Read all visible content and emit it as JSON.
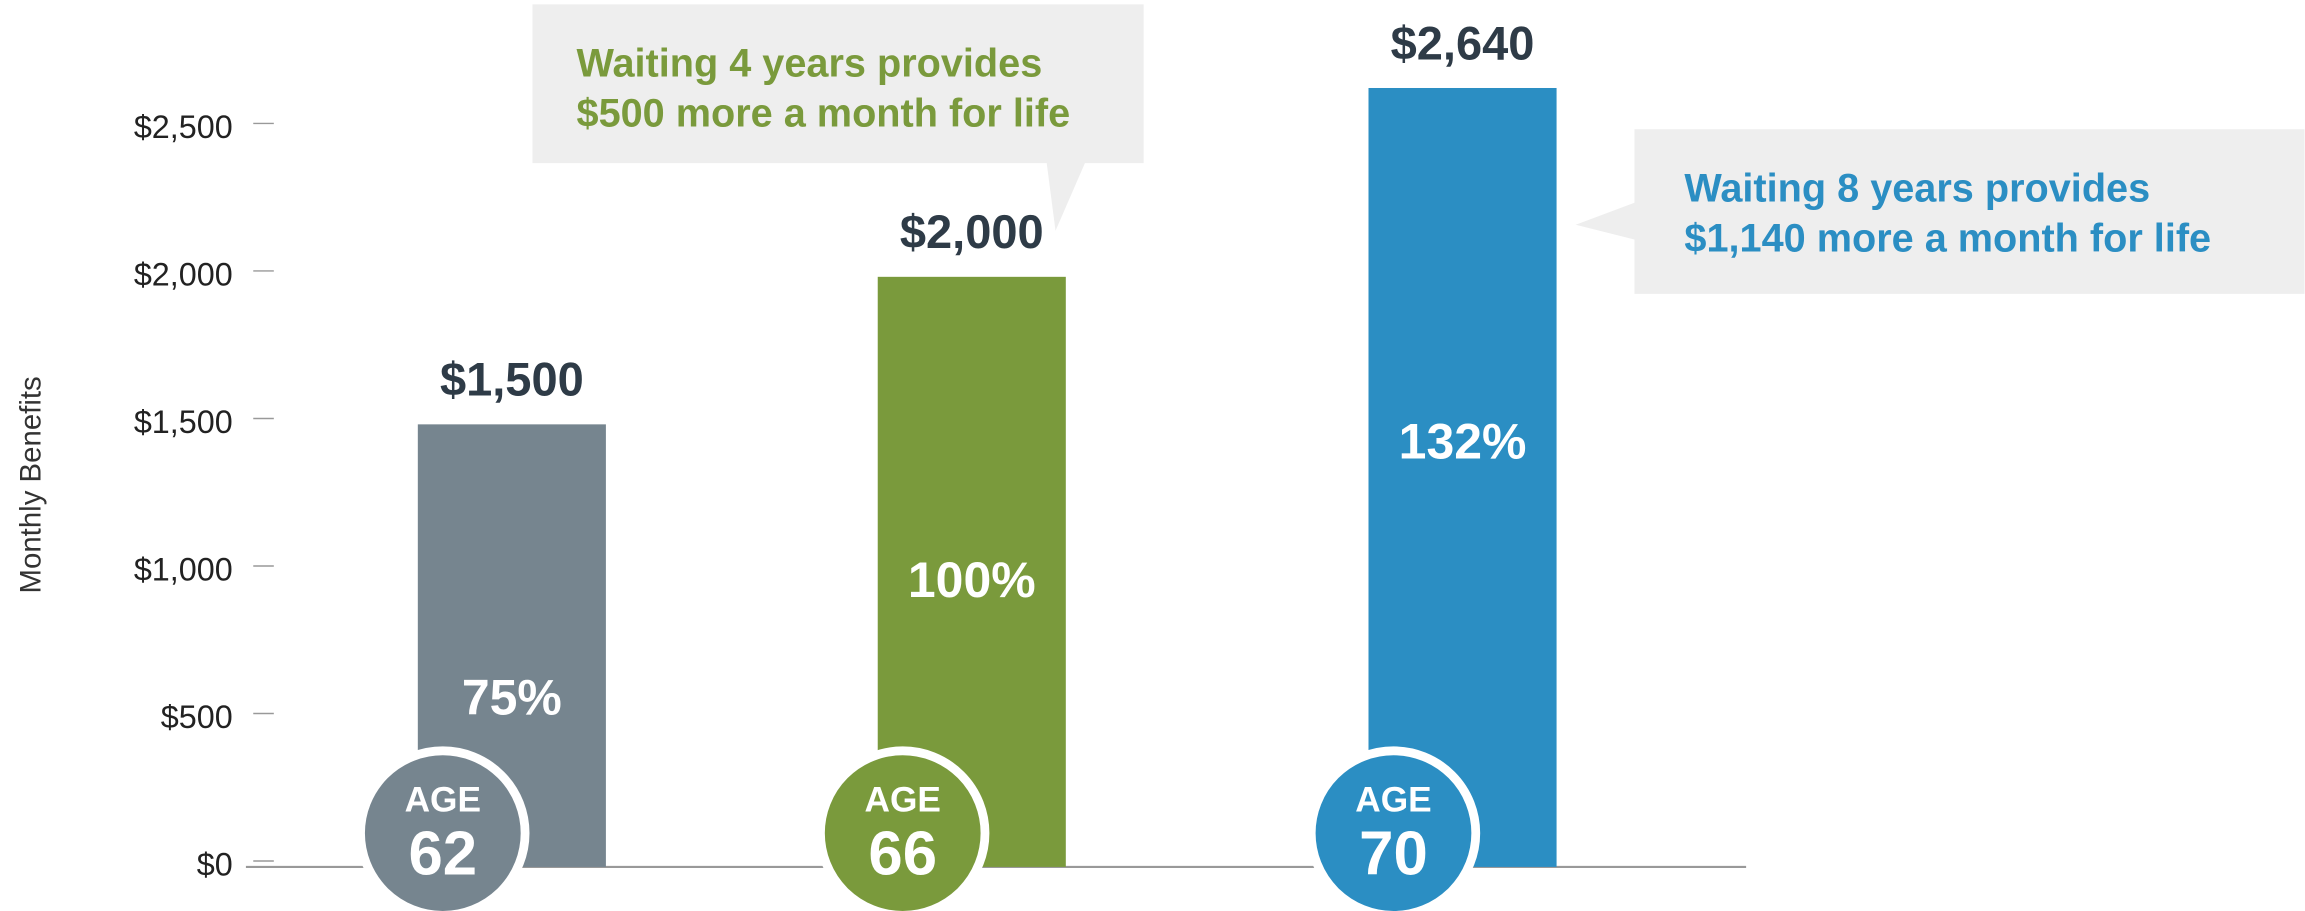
{
  "chart_data": {
    "type": "bar",
    "y_axis_label": "Monthly Benefits",
    "category_label": "AGE",
    "categories": [
      "62",
      "66",
      "70"
    ],
    "values": [
      1500,
      2000,
      2640
    ],
    "value_labels": [
      "$1,500",
      "$2,000",
      "$2,640"
    ],
    "bar_labels": [
      "75%",
      "100%",
      "132%"
    ],
    "colors": [
      "#76858f",
      "#7a9a3c",
      "#2b8ec3"
    ],
    "ylim": [
      0,
      2750
    ],
    "yticks": [
      {
        "value": 0,
        "label": "$0"
      },
      {
        "value": 500,
        "label": "$500"
      },
      {
        "value": 1000,
        "label": "$1,000"
      },
      {
        "value": 1500,
        "label": "$1,500"
      },
      {
        "value": 2000,
        "label": "$2,000"
      },
      {
        "value": 2500,
        "label": "$2,500"
      }
    ],
    "annotations": [
      {
        "lines": [
          "Waiting 4 years provides",
          "$500 more a month for life"
        ],
        "color": "#7a9a3c"
      },
      {
        "lines": [
          "Waiting 8 years provides",
          "$1,140 more a month for life"
        ],
        "color": "#2b8ec3"
      }
    ]
  }
}
